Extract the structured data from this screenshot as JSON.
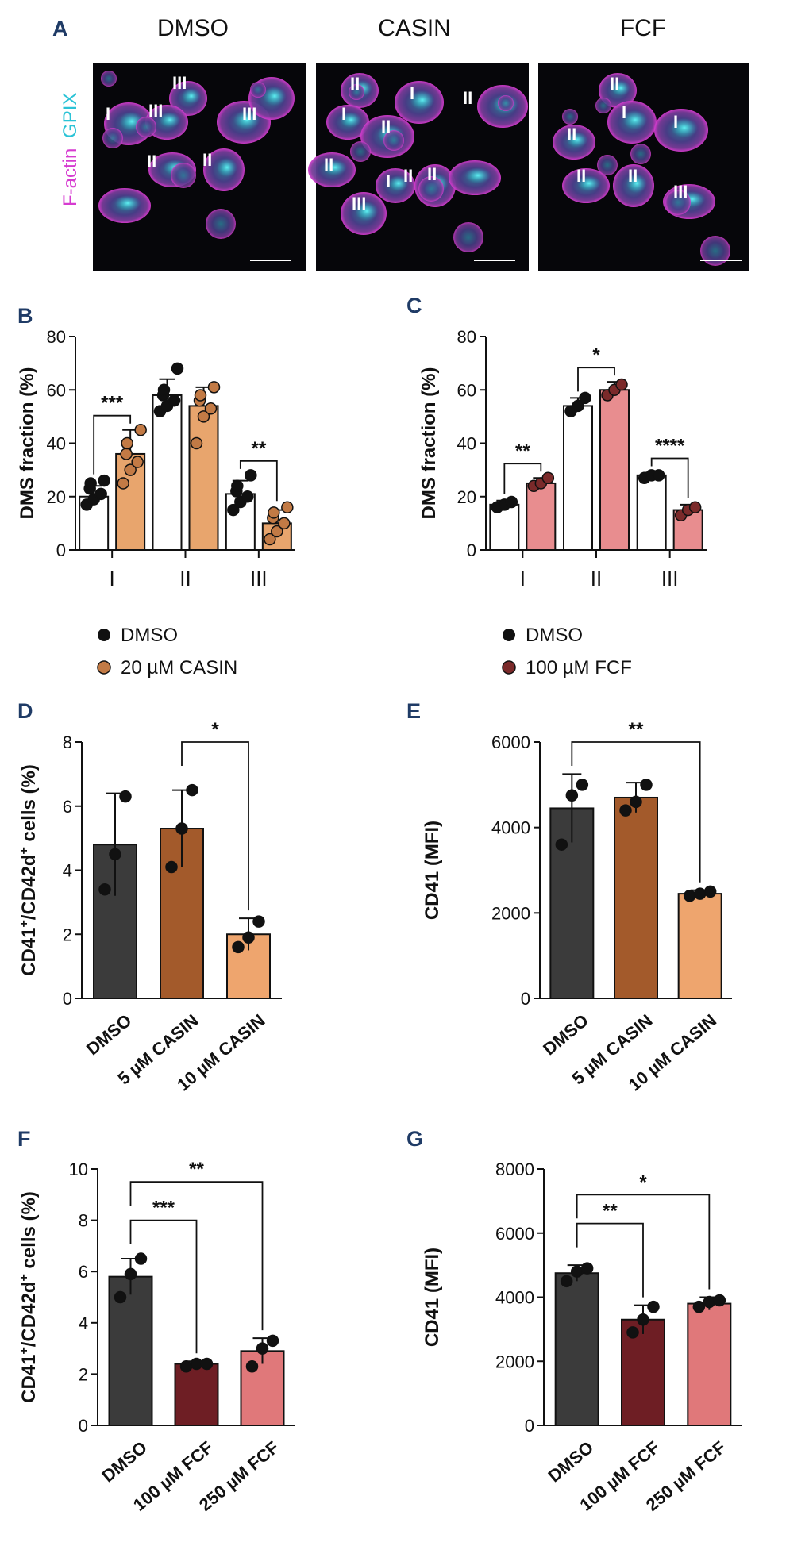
{
  "figure": {
    "panel_a": {
      "label": "A",
      "columns": [
        "DMSO",
        "CASIN",
        "FCF"
      ],
      "stain_magenta": "F-actin",
      "stain_cyan": "GPIX",
      "cell_labels": [
        [
          "III",
          "I",
          "III",
          "III",
          "II",
          "II"
        ],
        [
          "II",
          "I",
          "I",
          "II",
          "II",
          "II",
          "II",
          "III",
          "I",
          "II"
        ],
        [
          "II",
          "I",
          "II",
          "I",
          "II",
          "II",
          "III"
        ]
      ]
    },
    "legend_b": [
      "DMSO",
      "20 µM CASIN"
    ],
    "legend_c": [
      "DMSO",
      "100 µM FCF"
    ]
  },
  "colors": {
    "label_blue": "#1f3b66",
    "casin_orange": "#e8a56d",
    "casin_dot": "#c27a45",
    "fcf_pink": "#e88d8f",
    "fcf_dot": "#7b2a2a",
    "dark_grey": "#3b3b3b",
    "brown": "#a35a2b",
    "light_orange": "#eea56e",
    "maroon": "#6e1e24",
    "salmon": "#e0787a"
  },
  "chart_data": [
    {
      "panel": "B",
      "type": "bar",
      "ylabel": "DMS fraction (%)",
      "ylim": [
        0,
        80
      ],
      "yticks": [
        0,
        20,
        40,
        60,
        80
      ],
      "categories": [
        "I",
        "II",
        "III"
      ],
      "series": [
        {
          "name": "DMSO",
          "values": [
            20,
            58,
            21
          ],
          "errors": [
            4,
            6,
            5
          ],
          "points": [
            [
              17,
              19,
              21,
              23,
              25,
              26
            ],
            [
              52,
              54,
              56,
              58,
              60,
              68
            ],
            [
              15,
              18,
              20,
              22,
              24,
              28
            ]
          ]
        },
        {
          "name": "20 µM CASIN",
          "values": [
            36,
            54,
            10
          ],
          "errors": [
            9,
            7,
            5
          ],
          "points": [
            [
              25,
              30,
              33,
              36,
              40,
              45
            ],
            [
              40,
              50,
              53,
              56,
              58,
              61
            ],
            [
              4,
              7,
              10,
              12,
              14,
              16
            ]
          ]
        }
      ],
      "significance": [
        {
          "category": "I",
          "text": "***"
        },
        {
          "category": "III",
          "text": "**"
        }
      ]
    },
    {
      "panel": "C",
      "type": "bar",
      "ylabel": "DMS fraction (%)",
      "ylim": [
        0,
        80
      ],
      "yticks": [
        0,
        20,
        40,
        60,
        80
      ],
      "categories": [
        "I",
        "II",
        "III"
      ],
      "series": [
        {
          "name": "DMSO",
          "values": [
            17,
            54,
            28
          ],
          "errors": [
            1.5,
            3,
            1
          ],
          "points": [
            [
              16,
              17,
              18
            ],
            [
              52,
              54,
              57
            ],
            [
              27,
              28,
              28
            ]
          ]
        },
        {
          "name": "100 µM FCF",
          "values": [
            25,
            60,
            15
          ],
          "errors": [
            2,
            3,
            2
          ],
          "points": [
            [
              24,
              25,
              27
            ],
            [
              58,
              60,
              62
            ],
            [
              13,
              15,
              16
            ]
          ]
        }
      ],
      "significance": [
        {
          "category": "I",
          "text": "**"
        },
        {
          "category": "II",
          "text": "*"
        },
        {
          "category": "III",
          "text": "****"
        }
      ]
    },
    {
      "panel": "D",
      "type": "bar",
      "ylabel": "CD41+/CD42d+ cells (%)",
      "ylim": [
        0,
        8
      ],
      "yticks": [
        0,
        2,
        4,
        6,
        8
      ],
      "categories": [
        "DMSO",
        "5 µM CASIN",
        "10 µM CASIN"
      ],
      "values": [
        4.8,
        5.3,
        2.0
      ],
      "errors": [
        1.6,
        1.2,
        0.5
      ],
      "points": [
        [
          3.4,
          4.5,
          6.3
        ],
        [
          4.1,
          5.3,
          6.5
        ],
        [
          1.6,
          1.9,
          2.4
        ]
      ],
      "significance": [
        {
          "from": 1,
          "to": 2,
          "text": "*"
        }
      ]
    },
    {
      "panel": "E",
      "type": "bar",
      "ylabel": "CD41 (MFI)",
      "ylim": [
        0,
        6000
      ],
      "yticks": [
        0,
        2000,
        4000,
        6000
      ],
      "categories": [
        "DMSO",
        "5 µM CASIN",
        "10 µM CASIN"
      ],
      "values": [
        4450,
        4700,
        2450
      ],
      "errors": [
        800,
        350,
        80
      ],
      "points": [
        [
          3600,
          4750,
          5000
        ],
        [
          4400,
          4600,
          5000
        ],
        [
          2400,
          2450,
          2500
        ]
      ],
      "significance": [
        {
          "from": 0,
          "to": 2,
          "text": "**"
        }
      ]
    },
    {
      "panel": "F",
      "type": "bar",
      "ylabel": "CD41+/CD42d+ cells (%)",
      "ylim": [
        0,
        10
      ],
      "yticks": [
        0,
        2,
        4,
        6,
        8,
        10
      ],
      "categories": [
        "DMSO",
        "100 µM FCF",
        "250 µM FCF"
      ],
      "values": [
        5.8,
        2.4,
        2.9
      ],
      "errors": [
        0.7,
        0.1,
        0.5
      ],
      "points": [
        [
          5.0,
          5.9,
          6.5
        ],
        [
          2.3,
          2.4,
          2.4
        ],
        [
          2.3,
          3.0,
          3.3
        ]
      ],
      "significance": [
        {
          "from": 0,
          "to": 1,
          "text": "***"
        },
        {
          "from": 0,
          "to": 2,
          "text": "**"
        }
      ]
    },
    {
      "panel": "G",
      "type": "bar",
      "ylabel": "CD41 (MFI)",
      "ylim": [
        0,
        8000
      ],
      "yticks": [
        0,
        2000,
        4000,
        6000,
        8000
      ],
      "categories": [
        "DMSO",
        "100 µM FCF",
        "250 µM FCF"
      ],
      "values": [
        4750,
        3300,
        3800
      ],
      "errors": [
        250,
        450,
        200
      ],
      "points": [
        [
          4500,
          4800,
          4900
        ],
        [
          2900,
          3300,
          3700
        ],
        [
          3700,
          3850,
          3900
        ]
      ],
      "significance": [
        {
          "from": 0,
          "to": 1,
          "text": "**"
        },
        {
          "from": 0,
          "to": 2,
          "text": "*"
        }
      ]
    }
  ]
}
